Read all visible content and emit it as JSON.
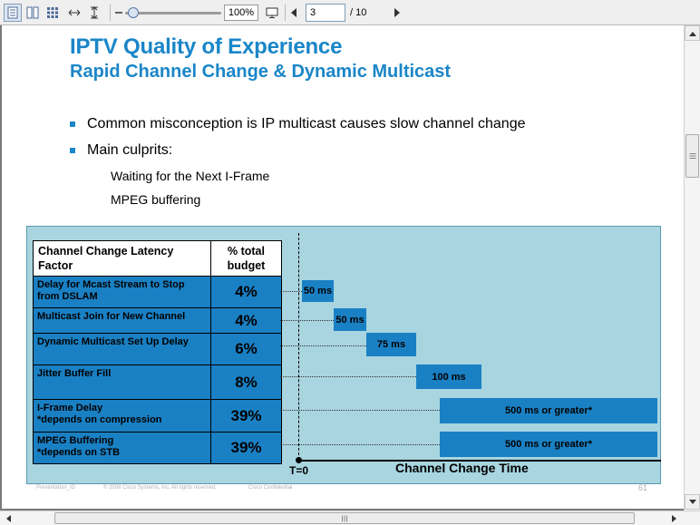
{
  "toolbar": {
    "buttons": [
      "single-page-view",
      "two-page-view",
      "thumbnail-view",
      "fit-width",
      "fit-height"
    ],
    "zoom_value": "100%",
    "page_current": "3",
    "page_total": "/ 10"
  },
  "slide": {
    "title": "IPTV Quality of Experience",
    "subtitle": "Rapid Channel Change & Dynamic Multicast",
    "bullets": [
      "Common misconception is IP multicast causes slow channel change",
      "Main culprits:"
    ],
    "sub_items": [
      "Waiting for the Next I-Frame",
      "MPEG buffering"
    ],
    "table": {
      "header_factor": "Channel Change Latency Factor",
      "header_budget": "% total budget",
      "rows": [
        {
          "factor": "Delay for Mcast Stream to Stop from DSLAM",
          "budget": "4%",
          "bar_label": "50 ms"
        },
        {
          "factor": "Multicast Join for New Channel",
          "budget": "4%",
          "bar_label": "50 ms"
        },
        {
          "factor": "Dynamic Multicast Set Up Delay",
          "budget": "6%",
          "bar_label": "75 ms"
        },
        {
          "factor": "Jitter Buffer Fill",
          "budget": "8%",
          "bar_label": "100 ms"
        },
        {
          "factor": "I-Frame Delay\n*depends on compression",
          "budget": "39%",
          "bar_label": "500 ms or greater*"
        },
        {
          "factor": "MPEG Buffering\n*depends on STB",
          "budget": "39%",
          "bar_label": "500 ms or greater*"
        }
      ]
    },
    "axis_origin": "T=0",
    "axis_label": "Channel Change Time",
    "footer_presentation": "Presentation_ID",
    "footer_copyright": "© 2008 Cisco Systems, Inc. All rights reserved.",
    "footer_confidential": "Cisco Confidential",
    "slide_number": "61"
  },
  "colors": {
    "title": "#1a86c8",
    "diagram_bg": "#a8d5e0",
    "bar": "#1a80c4"
  }
}
